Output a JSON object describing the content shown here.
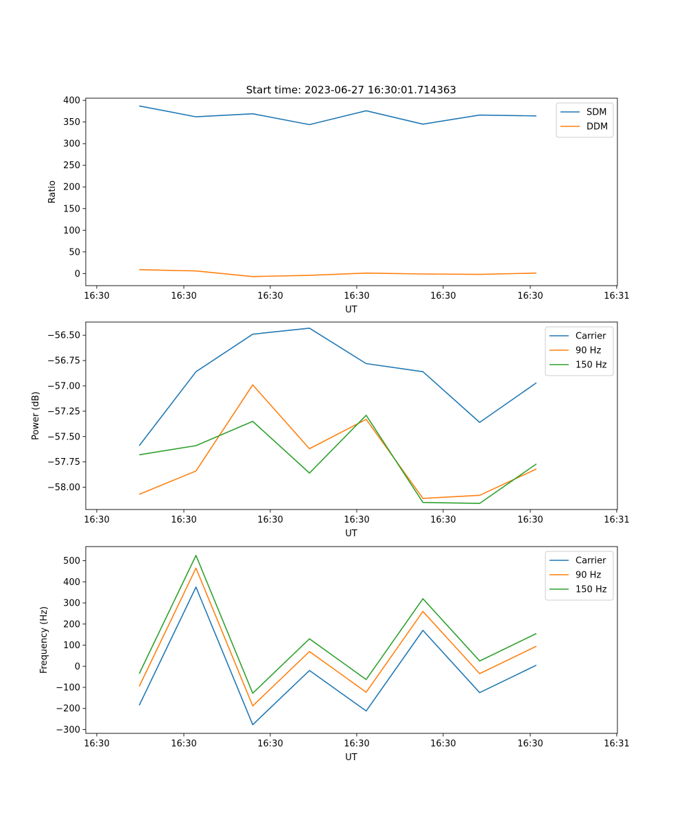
{
  "title": "Start time: 2023-06-27 16:30:01.714363",
  "chart_data": [
    {
      "type": "line",
      "xlabel": "UT",
      "ylabel": "Ratio",
      "xticks": [
        "16:30",
        "16:30",
        "16:30",
        "16:30",
        "16:30",
        "16:30",
        "16:31"
      ],
      "yticks": [
        0,
        50,
        100,
        150,
        200,
        250,
        300,
        350,
        400
      ],
      "ylim": [
        -28,
        405
      ],
      "legend": "top-right",
      "grid": false,
      "series": [
        {
          "name": "SDM",
          "color": "#1f77b4",
          "values": [
            387,
            362,
            369,
            344,
            376,
            345,
            366,
            364
          ]
        },
        {
          "name": "DDM",
          "color": "#ff7f0e",
          "values": [
            9,
            6,
            -7,
            -4,
            1,
            -1,
            -2,
            1
          ]
        }
      ]
    },
    {
      "type": "line",
      "xlabel": "UT",
      "ylabel": "Power (dB)",
      "xticks": [
        "16:30",
        "16:30",
        "16:30",
        "16:30",
        "16:30",
        "16:30",
        "16:31"
      ],
      "yticks": [
        -58.0,
        -57.75,
        -57.5,
        -57.25,
        -57.0,
        -56.75,
        -56.5
      ],
      "ytick_labels": [
        "−58.00",
        "−57.75",
        "−57.50",
        "−57.25",
        "−57.00",
        "−56.75",
        "−56.50"
      ],
      "ylim": [
        -58.22,
        -56.37
      ],
      "legend": "top-right",
      "grid": false,
      "series": [
        {
          "name": "Carrier",
          "color": "#1f77b4",
          "values": [
            -57.59,
            -56.86,
            -56.49,
            -56.43,
            -56.78,
            -56.86,
            -57.36,
            -56.97
          ]
        },
        {
          "name": "90 Hz",
          "color": "#ff7f0e",
          "values": [
            -58.07,
            -57.84,
            -56.99,
            -57.62,
            -57.33,
            -58.11,
            -58.08,
            -57.82
          ]
        },
        {
          "name": "150 Hz",
          "color": "#2ca02c",
          "values": [
            -57.68,
            -57.59,
            -57.35,
            -57.86,
            -57.29,
            -58.15,
            -58.16,
            -57.77
          ]
        }
      ]
    },
    {
      "type": "line",
      "xlabel": "UT",
      "ylabel": "Frequency (Hz)",
      "xticks": [
        "16:30",
        "16:30",
        "16:30",
        "16:30",
        "16:30",
        "16:30",
        "16:31"
      ],
      "yticks": [
        -300,
        -200,
        -100,
        0,
        100,
        200,
        300,
        400,
        500
      ],
      "ytick_labels": [
        "−300",
        "−200",
        "−100",
        "0",
        "100",
        "200",
        "300",
        "400",
        "500"
      ],
      "ylim": [
        -318,
        567
      ],
      "legend": "top-right",
      "grid": false,
      "series": [
        {
          "name": "Carrier",
          "color": "#1f77b4",
          "values": [
            -185,
            375,
            -277,
            -20,
            -212,
            170,
            -125,
            5
          ]
        },
        {
          "name": "90 Hz",
          "color": "#ff7f0e",
          "values": [
            -95,
            465,
            -188,
            70,
            -123,
            260,
            -35,
            95
          ]
        },
        {
          "name": "150 Hz",
          "color": "#2ca02c",
          "values": [
            -35,
            525,
            -128,
            130,
            -63,
            320,
            25,
            155
          ]
        }
      ]
    }
  ]
}
